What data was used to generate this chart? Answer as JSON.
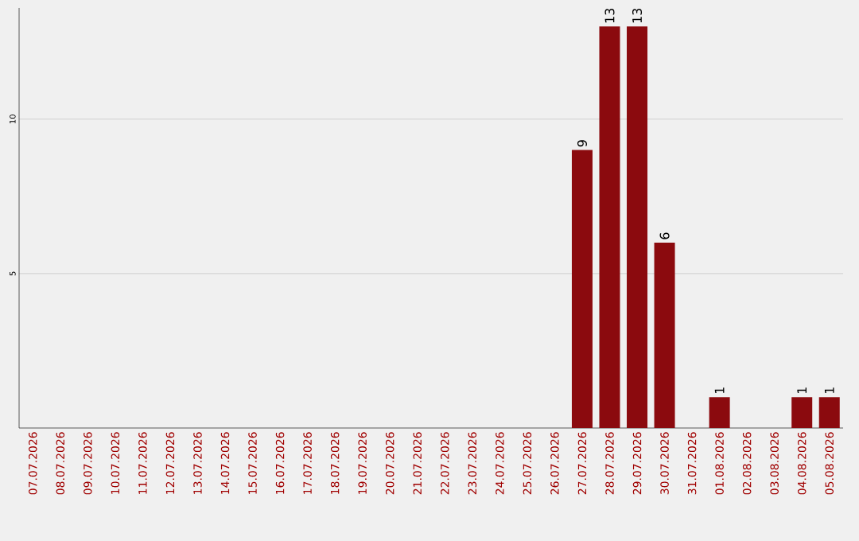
{
  "chart_data": {
    "type": "bar",
    "categories": [
      "07.07.2026",
      "08.07.2026",
      "09.07.2026",
      "10.07.2026",
      "11.07.2026",
      "12.07.2026",
      "13.07.2026",
      "14.07.2026",
      "15.07.2026",
      "16.07.2026",
      "17.07.2026",
      "18.07.2026",
      "19.07.2026",
      "20.07.2026",
      "21.07.2026",
      "22.07.2026",
      "23.07.2026",
      "24.07.2026",
      "25.07.2026",
      "26.07.2026",
      "27.07.2026",
      "28.07.2026",
      "29.07.2026",
      "30.07.2026",
      "31.07.2026",
      "01.08.2026",
      "02.08.2026",
      "03.08.2026",
      "04.08.2026",
      "05.08.2026"
    ],
    "values": [
      0,
      0,
      0,
      0,
      0,
      0,
      0,
      0,
      0,
      0,
      0,
      0,
      0,
      0,
      0,
      0,
      0,
      0,
      0,
      0,
      9,
      13,
      13,
      6,
      0,
      1,
      0,
      0,
      1,
      1
    ],
    "value_labels": [
      null,
      null,
      null,
      null,
      null,
      null,
      null,
      null,
      null,
      null,
      null,
      null,
      null,
      null,
      null,
      null,
      null,
      null,
      null,
      null,
      "9",
      "13",
      "13",
      "6",
      null,
      "1",
      null,
      null,
      "1",
      "1"
    ],
    "color": "#8b0a0e",
    "ylim": [
      0,
      13.6
    ],
    "yticks": [
      5,
      10
    ],
    "grid": "y"
  }
}
